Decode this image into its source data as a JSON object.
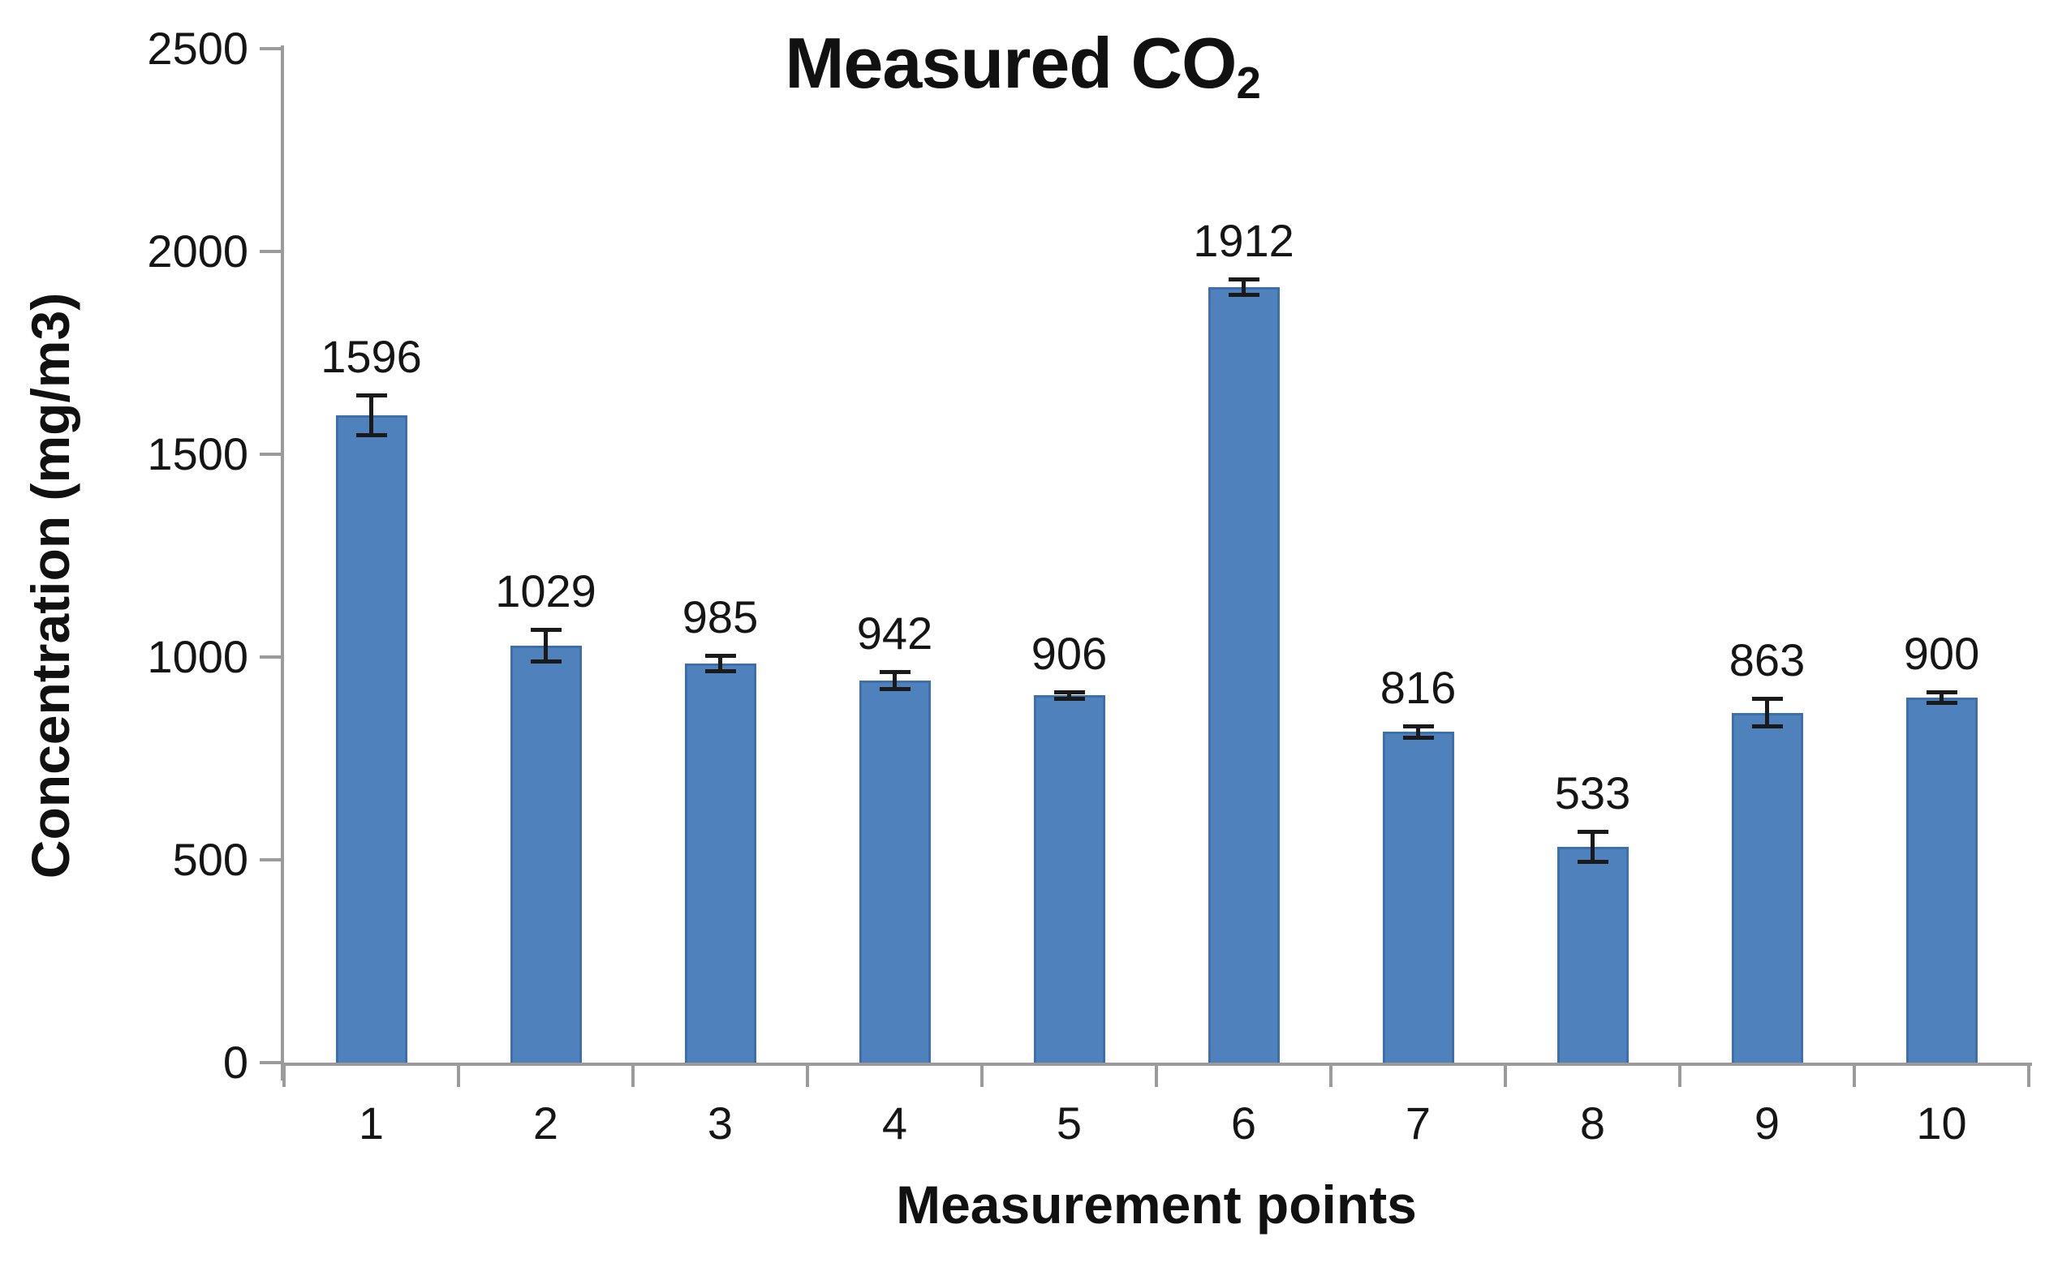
{
  "chart_data": {
    "type": "bar",
    "title": {
      "text": "Measured CO",
      "subscript": "2"
    },
    "xlabel": "Measurement points",
    "ylabel": "Concentration (mg/m3)",
    "categories": [
      "1",
      "2",
      "3",
      "4",
      "5",
      "6",
      "7",
      "8",
      "9",
      "10"
    ],
    "values": [
      1596,
      1029,
      985,
      942,
      906,
      1912,
      816,
      533,
      863,
      900
    ],
    "data_labels": [
      "1596",
      "1029",
      "985",
      "942",
      "906",
      "1912",
      "816",
      "533",
      "863",
      "900"
    ],
    "error_bars": [
      50,
      40,
      20,
      22,
      9,
      20,
      15,
      38,
      35,
      14
    ],
    "y_ticks": [
      0,
      500,
      1000,
      1500,
      2000,
      2500
    ],
    "y_tick_labels": [
      "0",
      "500",
      "1000",
      "1500",
      "2000",
      "2500"
    ],
    "ylim": [
      0,
      2500
    ],
    "grid": false,
    "legend": false,
    "colors": {
      "bar_fill": "#4f81bd",
      "bar_border": "#3e6fad",
      "axis": "#9b9b9b",
      "error_bar": "#1a1a1a",
      "text": "#151515"
    }
  }
}
